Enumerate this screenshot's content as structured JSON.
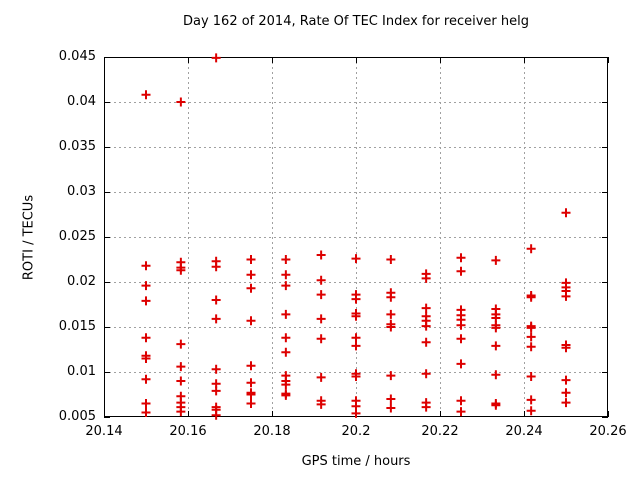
{
  "chart_data": {
    "type": "scatter",
    "title": "Day 162 of 2014, Rate Of TEC Index for receiver helg",
    "xlabel": "GPS time / hours",
    "ylabel": "ROTI / TECUs",
    "xlim": [
      20.14,
      20.26
    ],
    "ylim": [
      0.005,
      0.045
    ],
    "xticks": [
      20.14,
      20.16,
      20.18,
      20.2,
      20.22,
      20.24,
      20.26
    ],
    "xtick_labels": [
      "20.14",
      "20.16",
      "20.18",
      "20.2",
      "20.22",
      "20.24",
      "20.26"
    ],
    "yticks": [
      0.005,
      0.01,
      0.015,
      0.02,
      0.025,
      0.03,
      0.035,
      0.04,
      0.045
    ],
    "ytick_labels": [
      "0.005",
      "0.01",
      "0.015",
      "0.02",
      "0.025",
      "0.03",
      "0.035",
      "0.04",
      "0.045"
    ],
    "grid": true,
    "legend_position": "none",
    "marker": {
      "shape": "plus",
      "color": "#dd0000",
      "size": 9,
      "stroke_width": 2
    },
    "grid_color": "#a0a0a0",
    "axis_color": "#000000",
    "background_color": "#ffffff",
    "series": [
      {
        "name": "ROTI",
        "points": [
          [
            20.15,
            0.0408
          ],
          [
            20.15,
            0.0218
          ],
          [
            20.15,
            0.0196
          ],
          [
            20.15,
            0.0179
          ],
          [
            20.15,
            0.0138
          ],
          [
            20.15,
            0.0118
          ],
          [
            20.15,
            0.0115
          ],
          [
            20.15,
            0.0092
          ],
          [
            20.15,
            0.0065
          ],
          [
            20.15,
            0.0055
          ],
          [
            20.1583,
            0.04
          ],
          [
            20.1583,
            0.0222
          ],
          [
            20.1583,
            0.0216
          ],
          [
            20.1583,
            0.0213
          ],
          [
            20.1583,
            0.0131
          ],
          [
            20.1583,
            0.0106
          ],
          [
            20.1583,
            0.009
          ],
          [
            20.1583,
            0.0073
          ],
          [
            20.1583,
            0.0066
          ],
          [
            20.1583,
            0.0061
          ],
          [
            20.1583,
            0.0056
          ],
          [
            20.1667,
            0.0449
          ],
          [
            20.1667,
            0.0223
          ],
          [
            20.1667,
            0.0217
          ],
          [
            20.1667,
            0.018
          ],
          [
            20.1667,
            0.0159
          ],
          [
            20.1667,
            0.0103
          ],
          [
            20.1667,
            0.0087
          ],
          [
            20.1667,
            0.0079
          ],
          [
            20.1667,
            0.0061
          ],
          [
            20.1667,
            0.0058
          ],
          [
            20.1667,
            0.0052
          ],
          [
            20.175,
            0.0225
          ],
          [
            20.175,
            0.0208
          ],
          [
            20.175,
            0.0193
          ],
          [
            20.175,
            0.0157
          ],
          [
            20.175,
            0.0107
          ],
          [
            20.175,
            0.0088
          ],
          [
            20.175,
            0.0077
          ],
          [
            20.175,
            0.0075
          ],
          [
            20.175,
            0.0065
          ],
          [
            20.1833,
            0.0225
          ],
          [
            20.1833,
            0.0208
          ],
          [
            20.1833,
            0.0196
          ],
          [
            20.1833,
            0.0164
          ],
          [
            20.1833,
            0.0138
          ],
          [
            20.1833,
            0.0122
          ],
          [
            20.1833,
            0.0096
          ],
          [
            20.1833,
            0.009
          ],
          [
            20.1833,
            0.0086
          ],
          [
            20.1833,
            0.0076
          ],
          [
            20.1833,
            0.0074
          ],
          [
            20.1917,
            0.023
          ],
          [
            20.1917,
            0.0202
          ],
          [
            20.1917,
            0.0186
          ],
          [
            20.1917,
            0.0159
          ],
          [
            20.1917,
            0.0137
          ],
          [
            20.1917,
            0.0094
          ],
          [
            20.1917,
            0.0068
          ],
          [
            20.1917,
            0.0064
          ],
          [
            20.2,
            0.0226
          ],
          [
            20.2,
            0.0186
          ],
          [
            20.2,
            0.0181
          ],
          [
            20.2,
            0.0165
          ],
          [
            20.2,
            0.0162
          ],
          [
            20.2,
            0.0138
          ],
          [
            20.2,
            0.0129
          ],
          [
            20.2,
            0.0098
          ],
          [
            20.2,
            0.0095
          ],
          [
            20.2,
            0.0068
          ],
          [
            20.2,
            0.0062
          ],
          [
            20.2,
            0.0054
          ],
          [
            20.2083,
            0.0225
          ],
          [
            20.2083,
            0.0188
          ],
          [
            20.2083,
            0.0183
          ],
          [
            20.2083,
            0.0164
          ],
          [
            20.2083,
            0.0153
          ],
          [
            20.2083,
            0.015
          ],
          [
            20.2083,
            0.0096
          ],
          [
            20.2083,
            0.007
          ],
          [
            20.2083,
            0.006
          ],
          [
            20.2167,
            0.0209
          ],
          [
            20.2167,
            0.0204
          ],
          [
            20.2167,
            0.0171
          ],
          [
            20.2167,
            0.0162
          ],
          [
            20.2167,
            0.0157
          ],
          [
            20.2167,
            0.0151
          ],
          [
            20.2167,
            0.0133
          ],
          [
            20.2167,
            0.0098
          ],
          [
            20.2167,
            0.0066
          ],
          [
            20.2167,
            0.0061
          ],
          [
            20.225,
            0.0227
          ],
          [
            20.225,
            0.0212
          ],
          [
            20.225,
            0.0169
          ],
          [
            20.225,
            0.0163
          ],
          [
            20.225,
            0.0158
          ],
          [
            20.225,
            0.0152
          ],
          [
            20.225,
            0.0137
          ],
          [
            20.225,
            0.0109
          ],
          [
            20.225,
            0.0068
          ],
          [
            20.225,
            0.0056
          ],
          [
            20.2333,
            0.0224
          ],
          [
            20.2333,
            0.017
          ],
          [
            20.2333,
            0.0164
          ],
          [
            20.2333,
            0.016
          ],
          [
            20.2333,
            0.0152
          ],
          [
            20.2333,
            0.0149
          ],
          [
            20.2333,
            0.0129
          ],
          [
            20.2333,
            0.0097
          ],
          [
            20.2333,
            0.0065
          ],
          [
            20.2333,
            0.0063
          ],
          [
            20.2417,
            0.0237
          ],
          [
            20.2417,
            0.0185
          ],
          [
            20.2417,
            0.0183
          ],
          [
            20.2417,
            0.0151
          ],
          [
            20.2417,
            0.0149
          ],
          [
            20.2417,
            0.0139
          ],
          [
            20.2417,
            0.0128
          ],
          [
            20.2417,
            0.0095
          ],
          [
            20.2417,
            0.0069
          ],
          [
            20.2417,
            0.0057
          ],
          [
            20.25,
            0.0277
          ],
          [
            20.25,
            0.0199
          ],
          [
            20.25,
            0.0194
          ],
          [
            20.25,
            0.019
          ],
          [
            20.25,
            0.0184
          ],
          [
            20.25,
            0.013
          ],
          [
            20.25,
            0.0127
          ],
          [
            20.25,
            0.0091
          ],
          [
            20.25,
            0.0077
          ],
          [
            20.25,
            0.0066
          ]
        ]
      }
    ]
  }
}
